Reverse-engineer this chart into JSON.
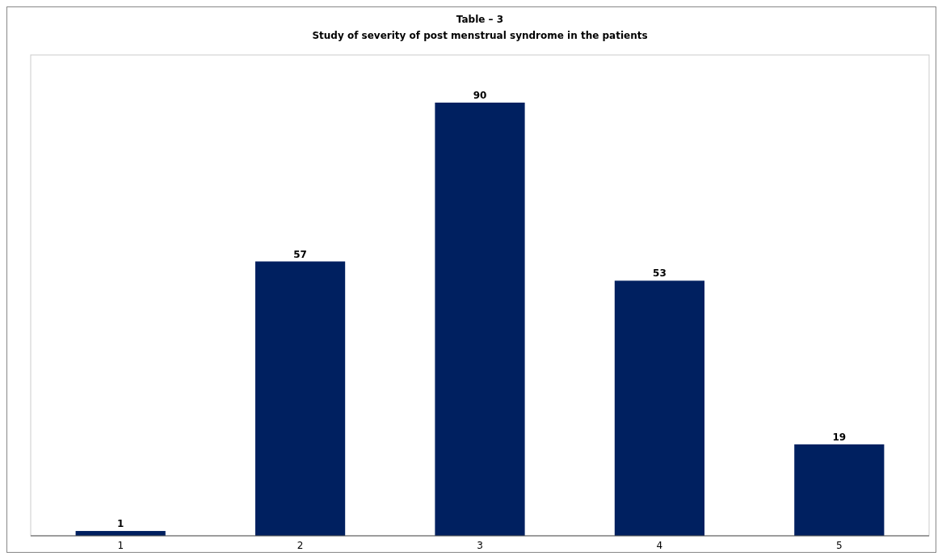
{
  "chart_data": {
    "type": "bar",
    "title": "Table – 3",
    "subtitle": "Study of severity of post menstrual syndrome in the patients",
    "categories": [
      "1",
      "2",
      "3",
      "4",
      "5"
    ],
    "values": [
      1,
      57,
      90,
      53,
      19
    ],
    "color": "#002060",
    "data_labels": true,
    "tick_labels": "x"
  }
}
